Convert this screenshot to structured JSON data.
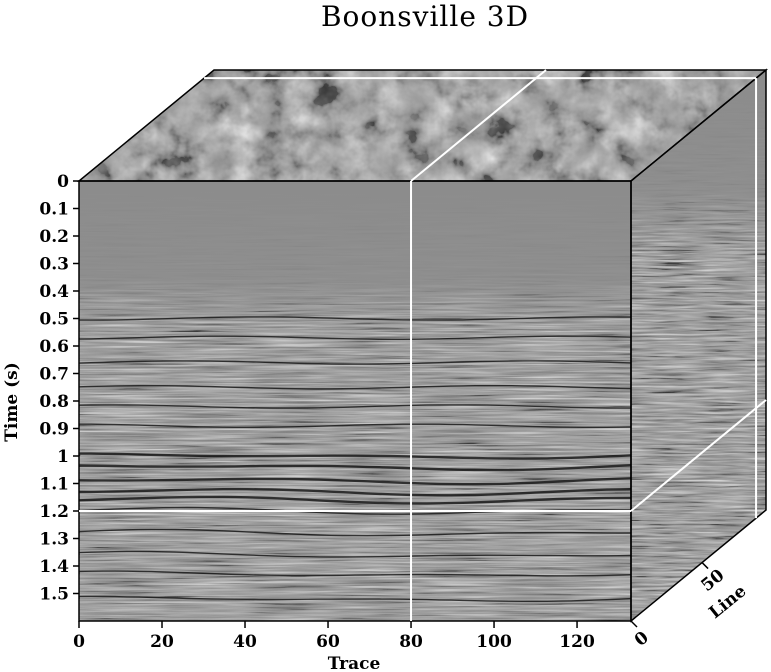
{
  "chart_data": {
    "type": "3d-seismic-cube",
    "title": "Boonsville 3D",
    "xlabel": "Trace",
    "ylabel": "Time (s)",
    "zlabel": "Line",
    "x_ticks": [
      "0",
      "20",
      "40",
      "60",
      "80",
      "100",
      "120"
    ],
    "x_range": [
      0,
      133
    ],
    "y_ticks": [
      "0",
      "0.1",
      "0.2",
      "0.3",
      "0.4",
      "0.5",
      "0.6",
      "0.7",
      "0.8",
      "0.9",
      "1",
      "1.1",
      "1.2",
      "1.3",
      "1.4",
      "1.5"
    ],
    "y_range": [
      0,
      1.6
    ],
    "z_ticks": [
      "0",
      "50"
    ],
    "z_range": [
      0,
      95
    ],
    "slice_trace": 80,
    "slice_time": 1.2,
    "slice_line": 88,
    "colors": {
      "background_gray": "#8c8c8c",
      "slice_line_color": "#ffffff"
    }
  }
}
